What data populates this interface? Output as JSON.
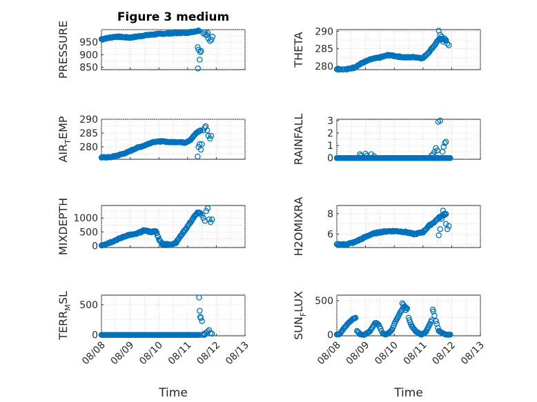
{
  "figure": {
    "title": "Figure 3 medium"
  },
  "colors": {
    "marker": "#0072BD",
    "axis": "#262626",
    "grid": "#c8c8c8"
  },
  "chart_data": [
    {
      "type": "scatter",
      "name": "pressure",
      "title": "Figure 3 medium",
      "ylabel_parts": [
        "PRESSURE"
      ],
      "ylim": [
        840,
        1000
      ],
      "yticks": [
        850,
        900,
        950
      ],
      "xlim": [
        0,
        5
      ],
      "xticks": [
        "08/08",
        "08/09",
        "08/10",
        "08/11",
        "08/12",
        "08/13"
      ],
      "show_xticklabels": false,
      "xlabel": "",
      "segments": [
        {
          "x0": 0,
          "x1": 3.4,
          "n": 130,
          "knots": [
            [
              0,
              962
            ],
            [
              0.5,
              972
            ],
            [
              1,
              968
            ],
            [
              1.5,
              977
            ],
            [
              2,
              983
            ],
            [
              2.5,
              986
            ],
            [
              3,
              988
            ],
            [
              3.4,
              996
            ]
          ],
          "jitter": 2
        }
      ],
      "points": [
        [
          3.55,
          985
        ],
        [
          3.62,
          980
        ],
        [
          3.68,
          978
        ],
        [
          3.72,
          965
        ],
        [
          3.78,
          955
        ],
        [
          3.83,
          960
        ],
        [
          3.87,
          972
        ],
        [
          3.6,
          990
        ],
        [
          3.7,
          987
        ],
        [
          3.35,
          930
        ],
        [
          3.38,
          920
        ],
        [
          3.42,
          880
        ],
        [
          3.44,
          910
        ],
        [
          3.47,
          915
        ],
        [
          3.36,
          845
        ]
      ]
    },
    {
      "type": "scatter",
      "name": "theta",
      "ylabel_parts": [
        "THETA"
      ],
      "ylim": [
        279,
        290.5
      ],
      "yticks": [
        280,
        285,
        290
      ],
      "xlim": [
        0,
        5
      ],
      "xticks": [
        "08/08",
        "08/09",
        "08/10",
        "08/11",
        "08/12",
        "08/13"
      ],
      "show_xticklabels": false,
      "xlabel": "",
      "segments": [
        {
          "x0": 0,
          "x1": 3.8,
          "n": 130,
          "knots": [
            [
              0,
              279.2
            ],
            [
              0.3,
              279
            ],
            [
              0.6,
              279.6
            ],
            [
              0.9,
              281
            ],
            [
              1.2,
              282
            ],
            [
              1.5,
              282.5
            ],
            [
              1.8,
              283.2
            ],
            [
              2.1,
              282.8
            ],
            [
              2.4,
              282.5
            ],
            [
              2.7,
              282.6
            ],
            [
              3.0,
              282.3
            ],
            [
              3.2,
              284
            ],
            [
              3.4,
              286
            ],
            [
              3.55,
              287.8
            ],
            [
              3.8,
              287.5
            ]
          ],
          "jitter": 0.15
        }
      ],
      "points": [
        [
          3.55,
          290.2
        ],
        [
          3.6,
          289
        ],
        [
          3.65,
          288.5
        ],
        [
          3.7,
          287
        ],
        [
          3.75,
          288
        ],
        [
          3.8,
          287.5
        ],
        [
          3.85,
          286.5
        ],
        [
          3.9,
          286
        ]
      ]
    },
    {
      "type": "scatter",
      "name": "air-temp",
      "ylabel_parts": [
        "AIR",
        "T",
        "EMP"
      ],
      "ylim": [
        275.5,
        290
      ],
      "yticks": [
        280,
        285,
        290
      ],
      "xlim": [
        0,
        5
      ],
      "xticks": [
        "08/08",
        "08/09",
        "08/10",
        "08/11",
        "08/12",
        "08/13"
      ],
      "show_xticklabels": false,
      "xlabel": "",
      "segments": [
        {
          "x0": 0,
          "x1": 3.45,
          "n": 130,
          "knots": [
            [
              0,
              276.2
            ],
            [
              0.3,
              276.2
            ],
            [
              0.6,
              277
            ],
            [
              0.9,
              278
            ],
            [
              1.2,
              279.5
            ],
            [
              1.5,
              280.5
            ],
            [
              1.8,
              281.8
            ],
            [
              2.1,
              282
            ],
            [
              2.4,
              281.7
            ],
            [
              2.7,
              281.8
            ],
            [
              2.9,
              281.5
            ],
            [
              3.1,
              282.5
            ],
            [
              3.3,
              285
            ],
            [
              3.45,
              286
            ]
          ],
          "jitter": 0.15
        }
      ],
      "points": [
        [
          3.35,
          276.5
        ],
        [
          3.38,
          280
        ],
        [
          3.42,
          281
        ],
        [
          3.46,
          279
        ],
        [
          3.5,
          281
        ],
        [
          3.55,
          286
        ],
        [
          3.6,
          287
        ],
        [
          3.63,
          287.5
        ],
        [
          3.68,
          286
        ],
        [
          3.72,
          284
        ],
        [
          3.78,
          283
        ],
        [
          3.82,
          284
        ]
      ]
    },
    {
      "type": "scatter",
      "name": "rainfall",
      "ylabel_parts": [
        "RAINFALL"
      ],
      "ylim": [
        -0.1,
        3.1
      ],
      "yticks": [
        0,
        1,
        2,
        3
      ],
      "xlim": [
        0,
        5
      ],
      "xticks": [
        "08/08",
        "08/09",
        "08/10",
        "08/11",
        "08/12",
        "08/13"
      ],
      "show_xticklabels": false,
      "xlabel": "",
      "segments": [
        {
          "x0": 0,
          "x1": 3.95,
          "n": 140,
          "knots": [
            [
              0,
              0
            ],
            [
              3.95,
              0
            ]
          ],
          "jitter": 0
        }
      ],
      "points": [
        [
          0.8,
          0.3
        ],
        [
          0.85,
          0.2
        ],
        [
          1.0,
          0.35
        ],
        [
          1.05,
          0.2
        ],
        [
          1.2,
          0.3
        ],
        [
          1.3,
          0.15
        ],
        [
          3.3,
          0.2
        ],
        [
          3.35,
          0.3
        ],
        [
          3.4,
          0.5
        ],
        [
          3.45,
          0.8
        ],
        [
          3.5,
          0.6
        ],
        [
          3.53,
          2.9
        ],
        [
          3.6,
          3.0
        ],
        [
          3.68,
          0.5
        ],
        [
          3.72,
          0.9
        ],
        [
          3.76,
          1.2
        ],
        [
          3.8,
          1.3
        ],
        [
          3.85,
          0
        ],
        [
          3.9,
          0
        ]
      ]
    },
    {
      "type": "scatter",
      "name": "mixdepth",
      "ylabel_parts": [
        "MIXDEPTH"
      ],
      "ylim": [
        -60,
        1450
      ],
      "yticks": [
        0,
        500,
        1000
      ],
      "xlim": [
        0,
        5
      ],
      "xticks": [
        "08/08",
        "08/09",
        "08/10",
        "08/11",
        "08/12",
        "08/13"
      ],
      "show_xticklabels": false,
      "xlabel": "",
      "segments": [
        {
          "x0": 0,
          "x1": 3.45,
          "n": 130,
          "knots": [
            [
              0,
              20
            ],
            [
              0.3,
              120
            ],
            [
              0.6,
              250
            ],
            [
              0.9,
              380
            ],
            [
              1.2,
              420
            ],
            [
              1.5,
              560
            ],
            [
              1.7,
              500
            ],
            [
              1.9,
              520
            ],
            [
              2.0,
              250
            ],
            [
              2.1,
              80
            ],
            [
              2.4,
              40
            ],
            [
              2.6,
              120
            ],
            [
              2.8,
              420
            ],
            [
              3.0,
              700
            ],
            [
              3.2,
              1000
            ],
            [
              3.35,
              1200
            ],
            [
              3.45,
              1150
            ]
          ],
          "jitter": 20
        }
      ],
      "points": [
        [
          3.5,
          1100
        ],
        [
          3.55,
          1000
        ],
        [
          3.6,
          900
        ],
        [
          3.65,
          1250
        ],
        [
          3.7,
          1350
        ],
        [
          3.75,
          950
        ],
        [
          3.8,
          850
        ],
        [
          3.85,
          950
        ],
        [
          3.4,
          1200
        ]
      ]
    },
    {
      "type": "scatter",
      "name": "h2omixra",
      "ylabel_parts": [
        "H2OMIXRA"
      ],
      "ylim": [
        4.7,
        8.8
      ],
      "yticks": [
        6,
        8
      ],
      "xlim": [
        0,
        5
      ],
      "xticks": [
        "08/08",
        "08/09",
        "08/10",
        "08/11",
        "08/12",
        "08/13"
      ],
      "show_xticklabels": false,
      "xlabel": "",
      "segments": [
        {
          "x0": 0,
          "x1": 3.8,
          "n": 130,
          "knots": [
            [
              0,
              5.0
            ],
            [
              0.3,
              5.0
            ],
            [
              0.6,
              5.2
            ],
            [
              0.9,
              5.6
            ],
            [
              1.2,
              6.0
            ],
            [
              1.5,
              6.2
            ],
            [
              1.8,
              6.3
            ],
            [
              2.1,
              6.3
            ],
            [
              2.4,
              6.2
            ],
            [
              2.7,
              6.0
            ],
            [
              3.0,
              6.2
            ],
            [
              3.2,
              6.8
            ],
            [
              3.4,
              7.2
            ],
            [
              3.55,
              7.6
            ],
            [
              3.8,
              8.0
            ]
          ],
          "jitter": 0.06
        }
      ],
      "points": [
        [
          3.55,
          5.9
        ],
        [
          3.6,
          6.5
        ],
        [
          3.65,
          7.5
        ],
        [
          3.7,
          8.3
        ],
        [
          3.75,
          8.0
        ],
        [
          3.8,
          7.0
        ],
        [
          3.85,
          6.5
        ],
        [
          3.9,
          6.8
        ]
      ]
    },
    {
      "type": "scatter",
      "name": "terr-msl",
      "ylabel_parts": [
        "TERR",
        "M",
        "SL"
      ],
      "ylim": [
        -15,
        660
      ],
      "yticks": [
        0,
        500
      ],
      "xlim": [
        0,
        5
      ],
      "xticks": [
        "08/08",
        "08/09",
        "08/10",
        "08/11",
        "08/12",
        "08/13"
      ],
      "show_xticklabels": true,
      "xlabel": "Time",
      "segments": [
        {
          "x0": 0,
          "x1": 3.4,
          "n": 160,
          "knots": [
            [
              0,
              0
            ],
            [
              3.4,
              0
            ]
          ],
          "jitter": 0
        }
      ],
      "points": [
        [
          3.4,
          620
        ],
        [
          3.42,
          400
        ],
        [
          3.44,
          300
        ],
        [
          3.46,
          280
        ],
        [
          3.5,
          230
        ],
        [
          3.55,
          15
        ],
        [
          3.6,
          10
        ],
        [
          3.65,
          40
        ],
        [
          3.7,
          60
        ],
        [
          3.75,
          80
        ],
        [
          3.8,
          30
        ],
        [
          3.85,
          20
        ],
        [
          3.5,
          0
        ],
        [
          3.58,
          0
        ]
      ]
    },
    {
      "type": "scatter",
      "name": "sun-flux",
      "ylabel_parts": [
        "SUN",
        "F",
        "LUX"
      ],
      "ylim": [
        -15,
        580
      ],
      "yticks": [
        0,
        500
      ],
      "xlim": [
        0,
        5
      ],
      "xticks": [
        "08/08",
        "08/09",
        "08/10",
        "08/11",
        "08/12",
        "08/13"
      ],
      "show_xticklabels": true,
      "xlabel": "Time",
      "segments": [
        {
          "x0": 0,
          "x1": 0.65,
          "n": 24,
          "knots": [
            [
              0,
              0
            ],
            [
              0.1,
              10
            ],
            [
              0.25,
              100
            ],
            [
              0.4,
              170
            ],
            [
              0.55,
              230
            ],
            [
              0.65,
              250
            ]
          ],
          "jitter": 4
        },
        {
          "x0": 0.7,
          "x1": 1.55,
          "n": 28,
          "knots": [
            [
              0.7,
              60
            ],
            [
              0.8,
              10
            ],
            [
              0.95,
              0
            ],
            [
              1.15,
              50
            ],
            [
              1.35,
              180
            ],
            [
              1.45,
              150
            ],
            [
              1.55,
              60
            ]
          ],
          "jitter": 4
        },
        {
          "x0": 1.6,
          "x1": 2.45,
          "n": 30,
          "knots": [
            [
              1.6,
              20
            ],
            [
              1.7,
              0
            ],
            [
              1.9,
              60
            ],
            [
              2.05,
              200
            ],
            [
              2.2,
              320
            ],
            [
              2.35,
              420
            ],
            [
              2.45,
              380
            ]
          ],
          "jitter": 4
        },
        {
          "x0": 2.5,
          "x1": 3.3,
          "n": 30,
          "knots": [
            [
              2.5,
              250
            ],
            [
              2.6,
              130
            ],
            [
              2.75,
              50
            ],
            [
              2.95,
              0
            ],
            [
              3.1,
              40
            ],
            [
              3.3,
              210
            ]
          ],
          "jitter": 4
        },
        {
          "x0": 3.55,
          "x1": 3.95,
          "n": 16,
          "knots": [
            [
              3.55,
              60
            ],
            [
              3.7,
              20
            ],
            [
              3.8,
              0
            ],
            [
              3.95,
              0
            ]
          ],
          "jitter": 3
        }
      ],
      "points": [
        [
          2.28,
          460
        ],
        [
          2.32,
          440
        ],
        [
          2.4,
          360
        ],
        [
          3.34,
          370
        ],
        [
          3.36,
          340
        ],
        [
          3.4,
          280
        ],
        [
          3.45,
          200
        ],
        [
          3.48,
          160
        ],
        [
          3.52,
          100
        ]
      ]
    }
  ]
}
